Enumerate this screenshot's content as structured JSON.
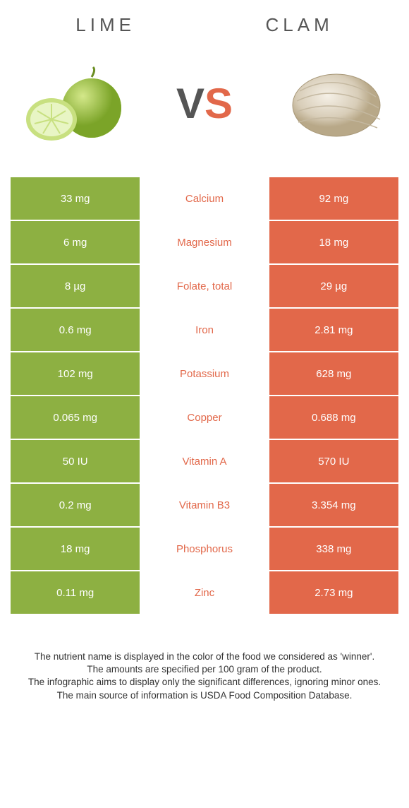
{
  "header": {
    "left_title": "LIME",
    "right_title": "CLAM"
  },
  "vs": {
    "v": "V",
    "s": "S"
  },
  "colors": {
    "lime_bg": "#8db042",
    "clam_bg": "#e2684a",
    "lime_label": "#8db042",
    "clam_label": "#e2684a",
    "text": "#555"
  },
  "rows": [
    {
      "left": "33 mg",
      "label": "Calcium",
      "right": "92 mg",
      "winner": "clam"
    },
    {
      "left": "6 mg",
      "label": "Magnesium",
      "right": "18 mg",
      "winner": "clam"
    },
    {
      "left": "8 µg",
      "label": "Folate, total",
      "right": "29 µg",
      "winner": "clam"
    },
    {
      "left": "0.6 mg",
      "label": "Iron",
      "right": "2.81 mg",
      "winner": "clam"
    },
    {
      "left": "102 mg",
      "label": "Potassium",
      "right": "628 mg",
      "winner": "clam"
    },
    {
      "left": "0.065 mg",
      "label": "Copper",
      "right": "0.688 mg",
      "winner": "clam"
    },
    {
      "left": "50 IU",
      "label": "Vitamin A",
      "right": "570 IU",
      "winner": "clam"
    },
    {
      "left": "0.2 mg",
      "label": "Vitamin B3",
      "right": "3.354 mg",
      "winner": "clam"
    },
    {
      "left": "18 mg",
      "label": "Phosphorus",
      "right": "338 mg",
      "winner": "clam"
    },
    {
      "left": "0.11 mg",
      "label": "Zinc",
      "right": "2.73 mg",
      "winner": "clam"
    }
  ],
  "footer": {
    "line1": "The nutrient name is displayed in the color of the food we considered as 'winner'.",
    "line2": "The amounts are specified per 100 gram of the product.",
    "line3": "The infographic aims to display only the significant differences, ignoring minor ones.",
    "line4": "The main source of information is USDA Food Composition Database."
  }
}
